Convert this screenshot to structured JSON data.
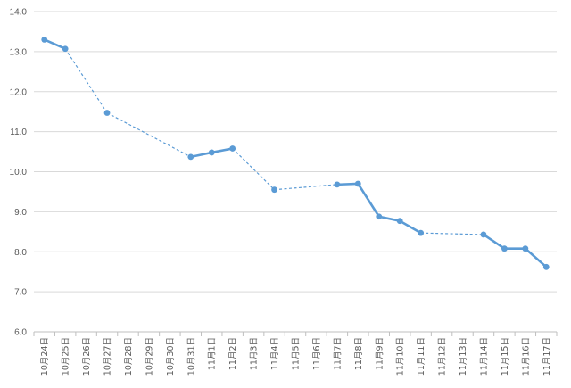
{
  "chart_data": {
    "type": "line",
    "title": "",
    "xlabel": "",
    "ylabel": "",
    "ylim": [
      6.0,
      14.0
    ],
    "ytick_step": 1.0,
    "grid": true,
    "legend": "none",
    "color": "#5b9bd5",
    "categories": [
      "10月24日",
      "10月25日",
      "10月26日",
      "10月27日",
      "10月28日",
      "10月29日",
      "10月30日",
      "10月31日",
      "11月1日",
      "11月2日",
      "11月3日",
      "11月4日",
      "11月5日",
      "11月6日",
      "11月7日",
      "11月8日",
      "11月9日",
      "11月10日",
      "11月11日",
      "11月12日",
      "11月13日",
      "11月14日",
      "11月15日",
      "11月16日",
      "11月17日"
    ],
    "series": [
      {
        "values": [
          13.3,
          13.07,
          null,
          11.47,
          null,
          null,
          null,
          10.37,
          10.48,
          10.58,
          null,
          9.55,
          null,
          null,
          9.68,
          9.7,
          8.88,
          8.77,
          8.47,
          null,
          null,
          8.43,
          8.08,
          8.08,
          7.62
        ]
      }
    ]
  }
}
